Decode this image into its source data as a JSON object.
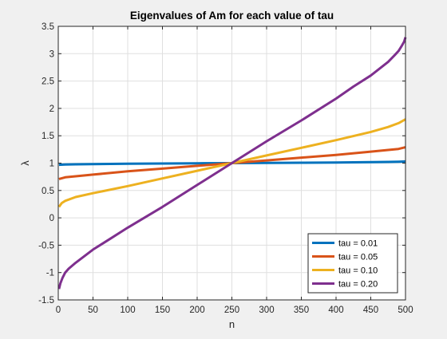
{
  "chart_data": {
    "type": "line",
    "title": "Eigenvalues of Am for each value of tau",
    "xlabel": "n",
    "ylabel": "λ",
    "xlim": [
      0,
      500
    ],
    "ylim": [
      -1.5,
      3.5
    ],
    "xticks": [
      0,
      50,
      100,
      150,
      200,
      250,
      300,
      350,
      400,
      450,
      500
    ],
    "yticks": [
      -1.5,
      -1,
      -0.5,
      0,
      0.5,
      1,
      1.5,
      2,
      2.5,
      3,
      3.5
    ],
    "grid": true,
    "legend_position": "bottom-right",
    "series": [
      {
        "name": "tau = 0.01",
        "color": "#0072BD",
        "x": [
          1,
          10,
          25,
          50,
          100,
          150,
          200,
          250,
          300,
          350,
          400,
          450,
          475,
          490,
          500
        ],
        "y": [
          0.97,
          0.975,
          0.978,
          0.982,
          0.988,
          0.993,
          0.997,
          1.0,
          1.003,
          1.007,
          1.012,
          1.018,
          1.022,
          1.026,
          1.03
        ]
      },
      {
        "name": "tau = 0.05",
        "color": "#D95319",
        "x": [
          1,
          10,
          25,
          50,
          100,
          150,
          200,
          250,
          300,
          350,
          400,
          450,
          475,
          490,
          500
        ],
        "y": [
          0.71,
          0.74,
          0.76,
          0.79,
          0.85,
          0.9,
          0.95,
          1.0,
          1.05,
          1.1,
          1.15,
          1.21,
          1.24,
          1.26,
          1.29
        ]
      },
      {
        "name": "tau = 0.10",
        "color": "#EDB120",
        "x": [
          1,
          5,
          10,
          25,
          50,
          100,
          150,
          200,
          250,
          300,
          350,
          400,
          450,
          475,
          490,
          500
        ],
        "y": [
          0.2,
          0.27,
          0.31,
          0.38,
          0.45,
          0.58,
          0.72,
          0.86,
          1.0,
          1.14,
          1.28,
          1.42,
          1.57,
          1.66,
          1.73,
          1.8
        ]
      },
      {
        "name": "tau = 0.20",
        "color": "#7E2F8E",
        "x": [
          1,
          3,
          6,
          10,
          15,
          25,
          50,
          75,
          100,
          150,
          200,
          250,
          300,
          350,
          400,
          425,
          450,
          475,
          485,
          490,
          495,
          498,
          500
        ],
        "y": [
          -1.3,
          -1.2,
          -1.1,
          -1.0,
          -0.93,
          -0.82,
          -0.58,
          -0.38,
          -0.18,
          0.2,
          0.6,
          1.0,
          1.4,
          1.78,
          2.18,
          2.4,
          2.6,
          2.85,
          2.98,
          3.05,
          3.15,
          3.22,
          3.3
        ]
      }
    ]
  }
}
